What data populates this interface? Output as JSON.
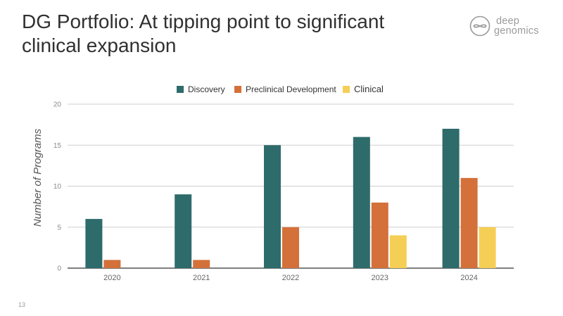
{
  "slide": {
    "title": "DG Portfolio: At tipping point to significant clinical expansion",
    "logo_line1": "deep",
    "logo_line2": "genomics",
    "page_number": "13"
  },
  "colors": {
    "discovery": "#2e6b6b",
    "preclinical": "#d4703a",
    "clinical": "#f5cf55",
    "grid": "#cfcfcf",
    "axis": "#333333",
    "tick_text": "#8a8a8a",
    "ylabel_text": "#555555"
  },
  "chart_data": {
    "type": "bar",
    "categories": [
      "2020",
      "2021",
      "2022",
      "2023",
      "2024"
    ],
    "series": [
      {
        "name": "Discovery",
        "values": [
          6,
          9,
          15,
          16,
          17
        ]
      },
      {
        "name": "Preclinical Development",
        "values": [
          1,
          1,
          5,
          8,
          11
        ]
      },
      {
        "name": "Clinical",
        "values": [
          0,
          0,
          0,
          4,
          5
        ]
      }
    ],
    "ylabel": "Number of Programs",
    "xlabel": "",
    "ylim": [
      0,
      20
    ],
    "yticks": [
      0,
      5,
      10,
      15,
      20
    ],
    "grid": true,
    "legend_position": "top"
  }
}
